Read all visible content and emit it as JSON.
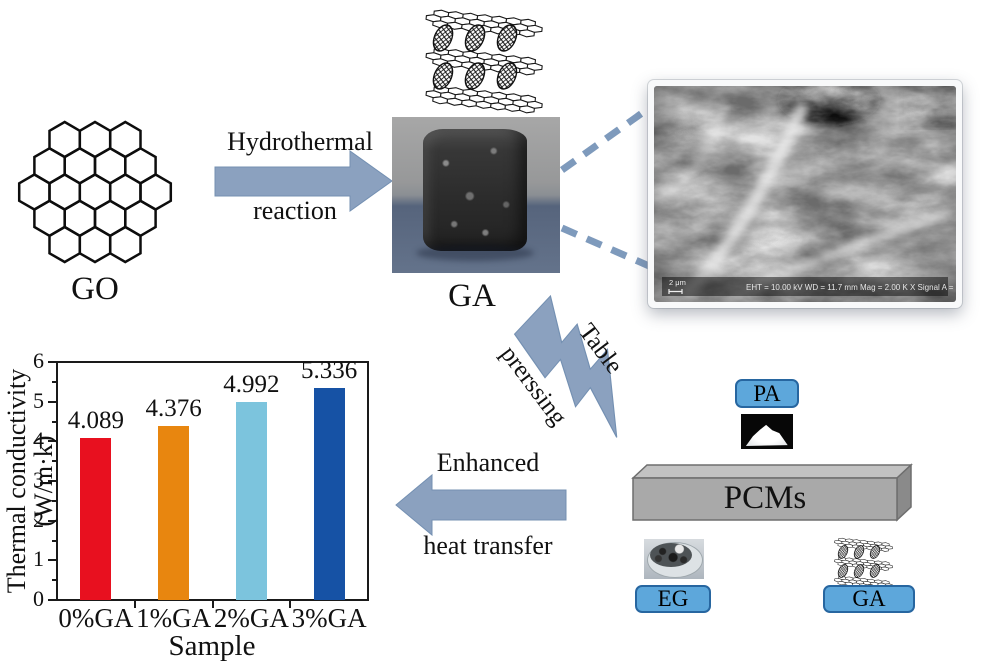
{
  "figure": {
    "go_label": "GO",
    "ga_label": "GA",
    "arrow1": {
      "line1": "Hydrothermal",
      "line2": "reaction"
    },
    "bolt": {
      "line1": "Table",
      "line2": "prerssing"
    },
    "arrow2": {
      "line1": "Enhanced",
      "line2": "heat transfer"
    },
    "pcms_label": "PCMs",
    "pa_label": "PA",
    "eg_label": "EG",
    "ga_chip_label": "GA",
    "sem": {
      "scale_bar": "2 μm",
      "info": "EHT = 10.00 kV    WD = 11.7 mm    Mag = 2.00 K X    Signal A = SE2"
    }
  },
  "colors": {
    "accent_arrow": "#8ba1bf",
    "arrow_edge": "#7490b2",
    "dashed_line": "#7e9abc",
    "chip_fill": "#5da7db",
    "chip_border": "#2766a0",
    "pcms_front": "#a9a9a9",
    "pcms_top": "#c2c2c2",
    "pcms_side": "#8a8a8a",
    "axis": "#1a1a1a"
  },
  "chart_data": {
    "type": "bar",
    "categories": [
      "0%GA",
      "1%GA",
      "2%GA",
      "3%GA"
    ],
    "values": [
      4.089,
      4.376,
      4.992,
      5.336
    ],
    "value_labels": [
      "4.089",
      "4.376",
      "4.992",
      "5.336"
    ],
    "bar_colors": [
      "#e8101f",
      "#e8860f",
      "#7cc4dd",
      "#1652a5"
    ],
    "title": "",
    "xlabel": "Sample",
    "ylabel": "Thermal conductivity (W/m·k)",
    "ylim": [
      0,
      6
    ],
    "yticks": [
      0,
      1,
      2,
      3,
      4,
      5,
      6
    ],
    "grid": false,
    "frame": "full-box"
  }
}
